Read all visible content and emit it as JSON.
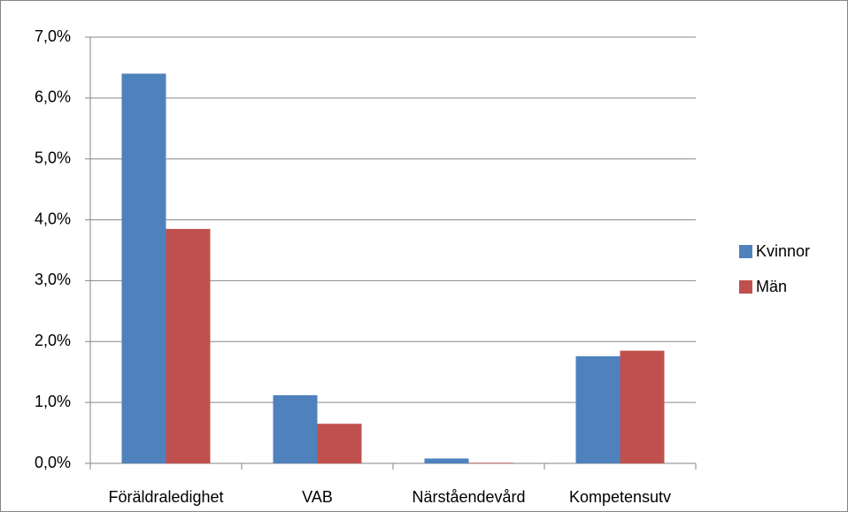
{
  "chart_data": {
    "type": "bar",
    "categories": [
      "Föräldraledighet",
      "VAB",
      "Närståendevård",
      "Kompetensutv"
    ],
    "series": [
      {
        "name": "Kvinnor",
        "color": "#4f81bd",
        "values": [
          6.4,
          1.12,
          0.08,
          1.76
        ]
      },
      {
        "name": "Män",
        "color": "#c0504d",
        "values": [
          3.85,
          0.65,
          0.01,
          1.85
        ]
      }
    ],
    "ylim": [
      0,
      7
    ],
    "yticks": [
      {
        "value": 0,
        "label": "0,0%"
      },
      {
        "value": 1,
        "label": "1,0%"
      },
      {
        "value": 2,
        "label": "2,0%"
      },
      {
        "value": 3,
        "label": "3,0%"
      },
      {
        "value": 4,
        "label": "4,0%"
      },
      {
        "value": 5,
        "label": "5,0%"
      },
      {
        "value": 6,
        "label": "6,0%"
      },
      {
        "value": 7,
        "label": "7,0%"
      }
    ],
    "grid": true,
    "legend": "right"
  }
}
